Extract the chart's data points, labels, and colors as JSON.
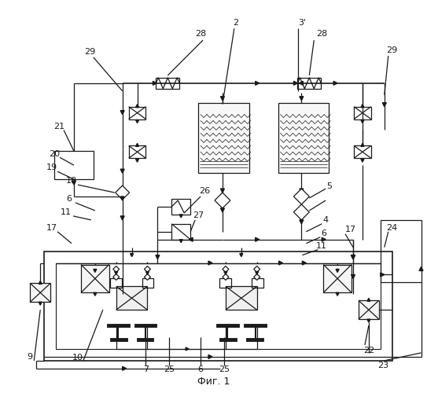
{
  "title": "Фиг. 1",
  "bg_color": "#ffffff",
  "line_color": "#1a1a1a",
  "fig_width": 5.43,
  "fig_height": 5.0,
  "dpi": 100
}
